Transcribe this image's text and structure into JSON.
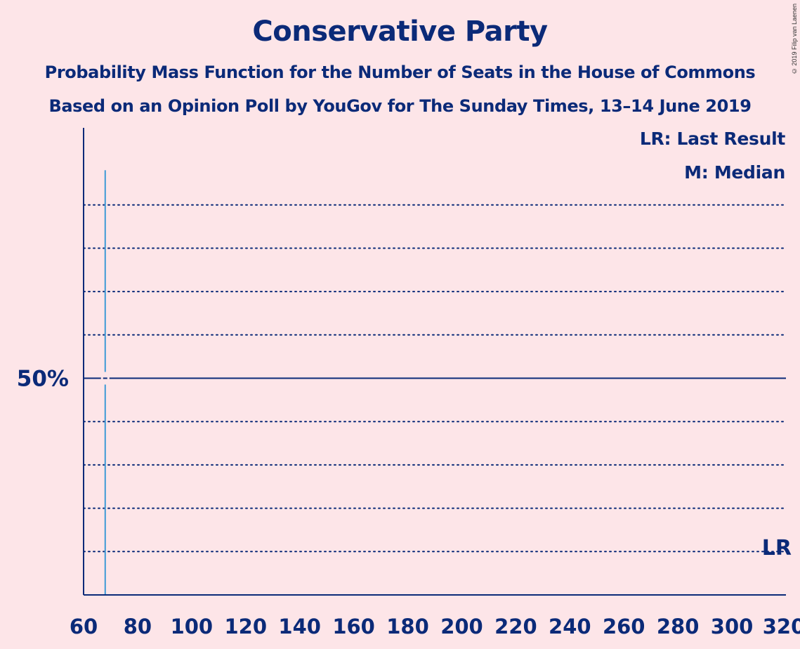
{
  "title": "Conservative Party",
  "subtitle_1": "Probability Mass Function for the Number of Seats in the House of Commons",
  "subtitle_2": "Based on an Opinion Poll by YouGov for The Sunday Times, 13–14 June 2019",
  "copyright": "© 2019 Filip van Laenen",
  "legend": {
    "last_result": "LR: Last Result",
    "median": "M: Median"
  },
  "colors": {
    "background": "#fde5e8",
    "text": "#0b2a78",
    "bar": "#3d9ad6"
  },
  "chart_data": {
    "type": "bar",
    "title": "Conservative Party",
    "xlim": [
      60,
      320
    ],
    "ylim": [
      0,
      100
    ],
    "x_ticks": [
      60,
      80,
      100,
      120,
      140,
      160,
      180,
      200,
      220,
      240,
      260,
      280,
      300,
      320
    ],
    "x_tick_labels": [
      "60",
      "80",
      "100",
      "120",
      "140",
      "160",
      "180",
      "200",
      "220",
      "240",
      "260",
      "280",
      "300",
      "320"
    ],
    "y_gridlines": [
      10,
      20,
      30,
      40,
      60,
      70,
      80,
      90
    ],
    "y_labeled_line": {
      "value": 50,
      "label": "50%"
    },
    "grid": true,
    "series": [
      {
        "x": [
          65,
          68
        ],
        "y": [
          0.1,
          98
        ]
      }
    ],
    "last_result": {
      "seats": 317,
      "label": "LR"
    },
    "median": {
      "seats": 68,
      "label": "M"
    }
  }
}
